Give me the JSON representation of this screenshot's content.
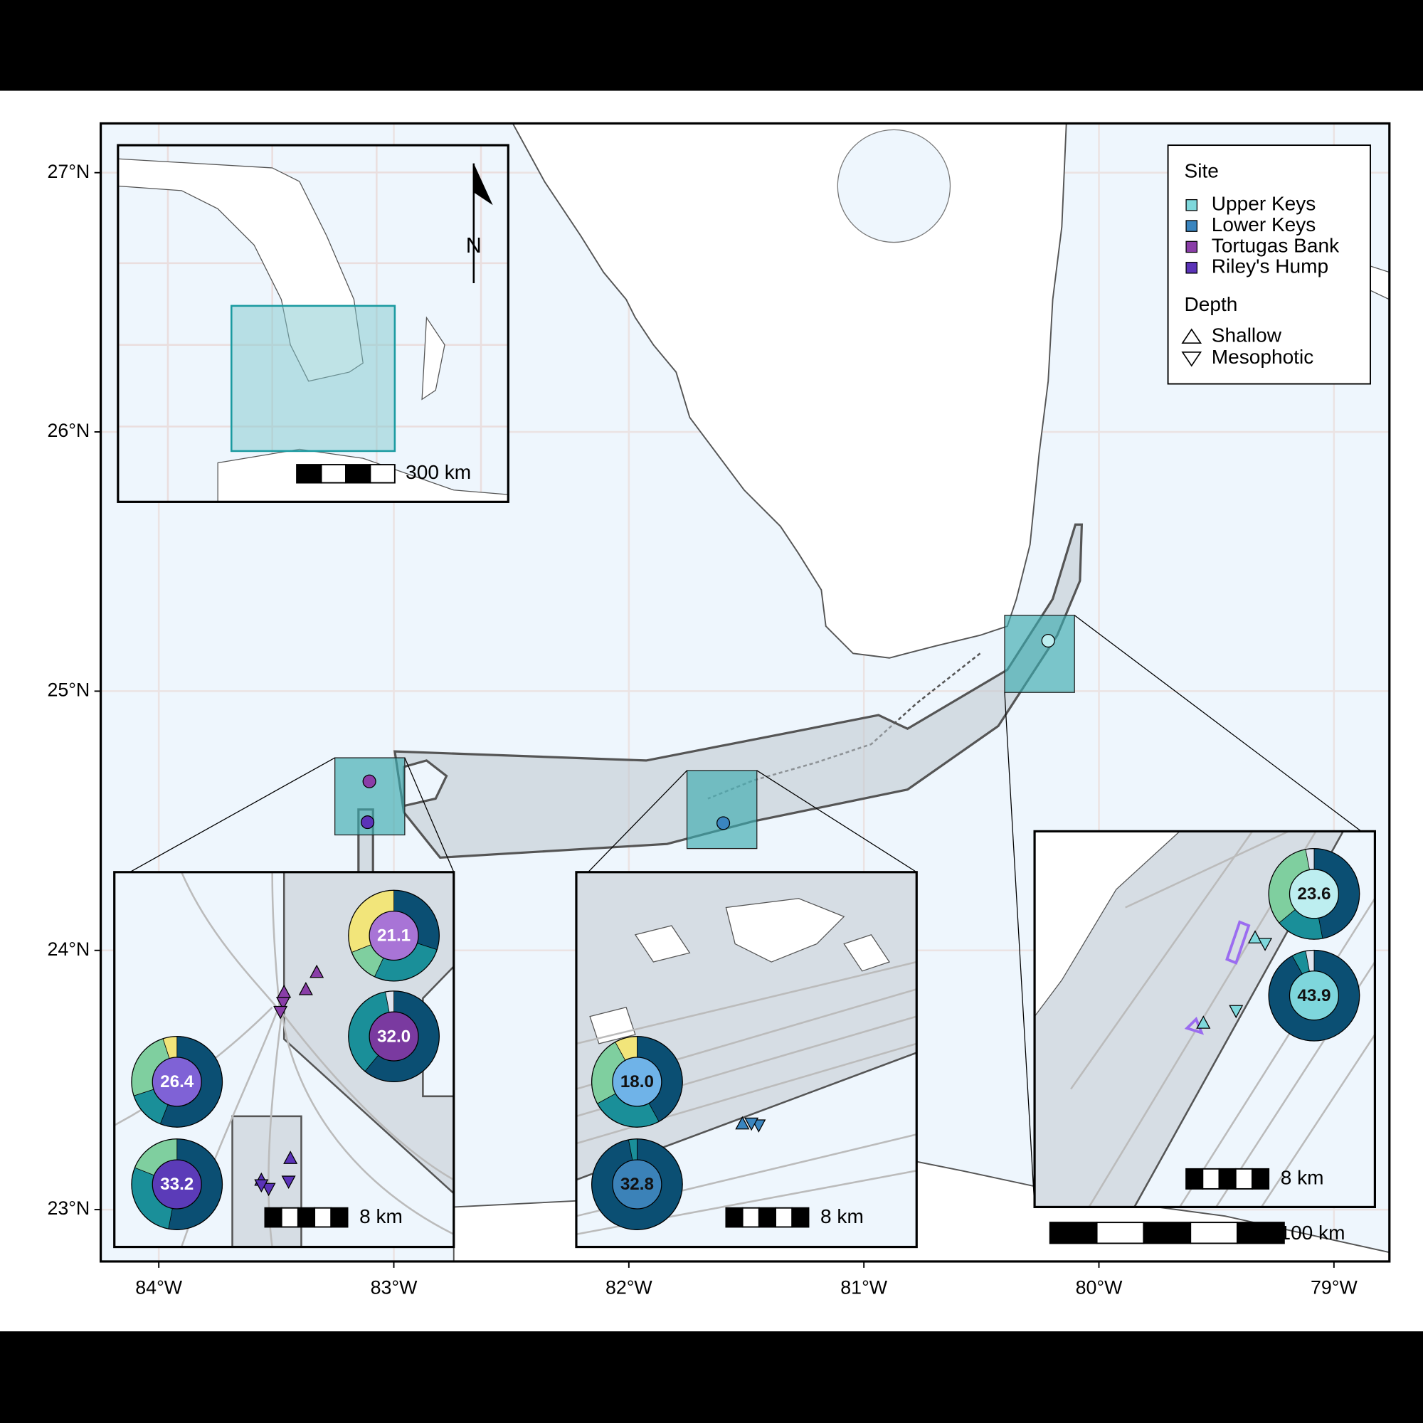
{
  "map": {
    "lon_range": [
      -84.247,
      -78.764
    ],
    "lat_range": [
      22.8,
      27.19
    ],
    "lon_ticks": [
      {
        "value": -84,
        "label": "84°W"
      },
      {
        "value": -83,
        "label": "83°W"
      },
      {
        "value": -82,
        "label": "82°W"
      },
      {
        "value": -81,
        "label": "81°W"
      },
      {
        "value": -80,
        "label": "80°W"
      },
      {
        "value": -79,
        "label": "79°W"
      }
    ],
    "lat_ticks": [
      {
        "value": 23,
        "label": "23°N"
      },
      {
        "value": 24,
        "label": "24°N"
      },
      {
        "value": 25,
        "label": "25°N"
      },
      {
        "value": 26,
        "label": "26°N"
      },
      {
        "value": 27,
        "label": "27°N"
      }
    ],
    "grid": true
  },
  "legend": {
    "site_title": "Site",
    "sites": [
      {
        "name": "Upper Keys",
        "color": "#7fd8dc"
      },
      {
        "name": "Lower Keys",
        "color": "#3a85bf"
      },
      {
        "name": "Tortugas Bank",
        "color": "#8a3ea8"
      },
      {
        "name": "Riley's Hump",
        "color": "#5b33b8"
      }
    ],
    "depth_title": "Depth",
    "depths": [
      "Shallow",
      "Mesophotic"
    ]
  },
  "north_label": "N",
  "scale_bars": [
    "300 km",
    "8 km",
    "8 km",
    "8 km",
    "100 km"
  ],
  "slice_colors": [
    "#0b4f73",
    "#1a8f99",
    "#7fcf9f",
    "#f2e57a",
    "#dfe4ef"
  ],
  "pies": [
    {
      "label": "21.1",
      "center_color": "#a874d6",
      "text_color": "#ffffff",
      "values": [
        30,
        27,
        12,
        31,
        0
      ]
    },
    {
      "label": "32.0",
      "center_color": "#7a3aa0",
      "text_color": "#ffffff",
      "values": [
        61,
        36,
        0,
        0,
        3
      ]
    },
    {
      "label": "26.4",
      "center_color": "#7f62d6",
      "text_color": "#ffffff",
      "values": [
        56,
        14,
        25,
        5,
        0
      ]
    },
    {
      "label": "33.2",
      "center_color": "#5b3bb8",
      "text_color": "#ffffff",
      "values": [
        53,
        28,
        19,
        0,
        0
      ]
    },
    {
      "label": "18.0",
      "center_color": "#6fb3e8",
      "text_color": "#111111",
      "values": [
        42,
        25,
        25,
        8,
        0
      ]
    },
    {
      "label": "32.8",
      "center_color": "#3b82b8",
      "text_color": "#111111",
      "values": [
        97,
        3,
        0,
        0,
        0
      ]
    },
    {
      "label": "23.6",
      "center_color": "#bdeef0",
      "text_color": "#111111",
      "values": [
        47,
        17,
        33,
        0,
        3
      ]
    },
    {
      "label": "43.9",
      "center_color": "#7ed6dc",
      "text_color": "#111111",
      "values": [
        92,
        5,
        0,
        0,
        3
      ]
    }
  ]
}
